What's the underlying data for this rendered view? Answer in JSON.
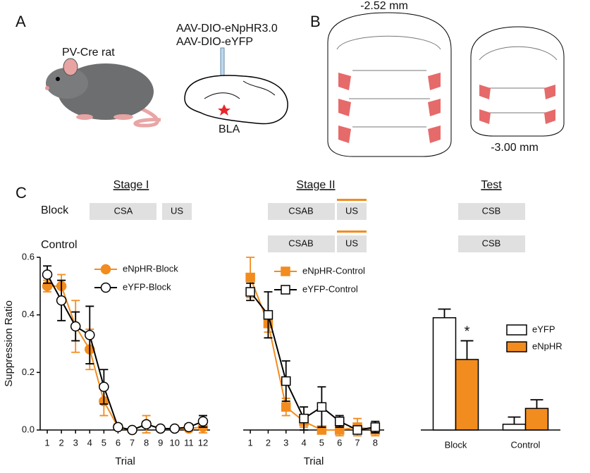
{
  "figure": {
    "panel_labels": [
      "A",
      "B",
      "C"
    ],
    "rat_label": "PV-Cre rat",
    "virus": [
      "AAV-DIO-eNpHR3.0",
      "AAV-DIO-eYFP"
    ],
    "region": "BLA",
    "sections": [
      "-2.52 mm",
      "-3.00 mm"
    ]
  },
  "design": {
    "stages": [
      "Stage I",
      "Stage II",
      "Test"
    ],
    "rows": [
      {
        "group": "Block",
        "cells": [
          "CSA",
          "US",
          "CSAB",
          "US",
          "CSB"
        ]
      },
      {
        "group": "Control",
        "cells": [
          "CSAB",
          "US",
          "CSB"
        ]
      }
    ]
  },
  "chart_data": [
    {
      "type": "line",
      "y_label": "Suppression Ratio",
      "x_label": "Trial",
      "x": [
        1,
        2,
        3,
        4,
        5,
        6,
        7,
        8,
        9,
        10,
        11,
        12
      ],
      "xlim": [
        0.5,
        12.5
      ],
      "xticks": [
        1,
        2,
        3,
        4,
        5,
        6,
        7,
        8,
        9,
        10,
        11,
        12
      ],
      "ylim": [
        0,
        0.6
      ],
      "yticks": [
        {
          "value": 0,
          "label": "0.0"
        },
        0.2,
        0.4,
        0.6
      ],
      "series": [
        {
          "name": "eNpHR-Block",
          "color": "#f28c1e",
          "fill": "#f28c1e",
          "marker": "circle",
          "values": [
            0.5,
            0.5,
            0.36,
            0.28,
            0.1,
            0.01,
            0.0,
            0.02,
            0.005,
            0.005,
            0.005,
            0.01
          ],
          "errors": [
            0.02,
            0.04,
            0.09,
            0.07,
            0.05,
            0.01,
            0.005,
            0.03,
            0.005,
            0.005,
            0.005,
            0.02
          ]
        },
        {
          "name": "eYFP-Block",
          "color": "#000000",
          "fill": "#ffffff",
          "marker": "circle",
          "values": [
            0.54,
            0.45,
            0.36,
            0.33,
            0.15,
            0.01,
            0.0,
            0.02,
            0.005,
            0.005,
            0.01,
            0.03
          ],
          "errors": [
            0.03,
            0.07,
            0.05,
            0.1,
            0.06,
            0.01,
            0.005,
            0.01,
            0.005,
            0.005,
            0.01,
            0.02
          ]
        }
      ]
    },
    {
      "type": "line",
      "x_label": "Trial",
      "x": [
        1,
        2,
        3,
        4,
        5,
        6,
        7,
        8
      ],
      "xlim": [
        0.6,
        8.5
      ],
      "xticks": [
        1,
        2,
        3,
        4,
        5,
        6,
        7,
        8
      ],
      "ylim": [
        0,
        0.6
      ],
      "series": [
        {
          "name": "eNpHR-Control",
          "color": "#f28c1e",
          "fill": "#f28c1e",
          "marker": "square",
          "values": [
            0.53,
            0.37,
            0.08,
            0.03,
            0.0,
            0.0,
            0.01,
            0.0
          ],
          "errors": [
            0.07,
            0.03,
            0.03,
            0.02,
            0.005,
            0.02,
            0.03,
            0.02
          ]
        },
        {
          "name": "eYFP-Control",
          "color": "#000000",
          "fill": "#ffffff",
          "marker": "square",
          "values": [
            0.48,
            0.4,
            0.17,
            0.04,
            0.08,
            0.03,
            0.0,
            0.01
          ],
          "errors": [
            0.03,
            0.08,
            0.07,
            0.04,
            0.07,
            0.02,
            0.01,
            0.02
          ]
        }
      ]
    },
    {
      "type": "bar",
      "categories": [
        "Block",
        "Control"
      ],
      "ylim": [
        0,
        0.6
      ],
      "annotation": "*",
      "series": [
        {
          "name": "eYFP",
          "color": "#ffffff",
          "values": [
            0.39,
            0.02
          ],
          "errors": [
            0.03,
            0.025
          ]
        },
        {
          "name": "eNpHR",
          "color": "#f28c1e",
          "values": [
            0.245,
            0.075
          ],
          "errors": [
            0.065,
            0.03
          ]
        }
      ]
    }
  ]
}
